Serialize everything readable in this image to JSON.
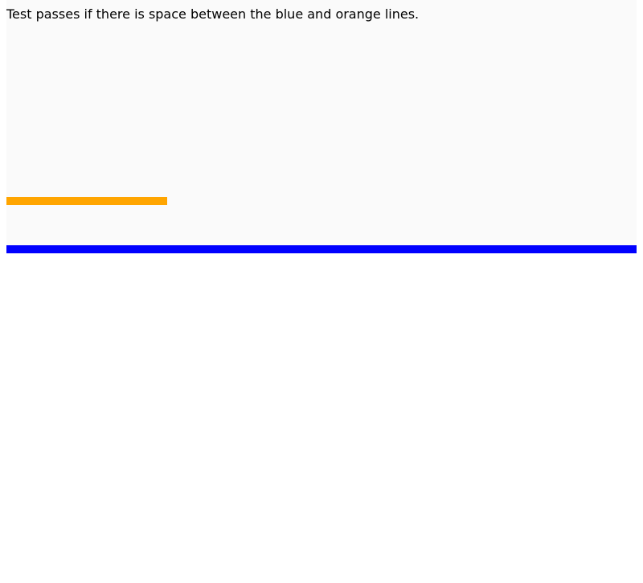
{
  "instruction": "Test passes if there is space between the blue and orange lines.",
  "colors": {
    "orange_line": "#ffa500",
    "blue_line": "#0000ff",
    "test_area_background": "#fafafa",
    "page_background": "#ffffff"
  }
}
